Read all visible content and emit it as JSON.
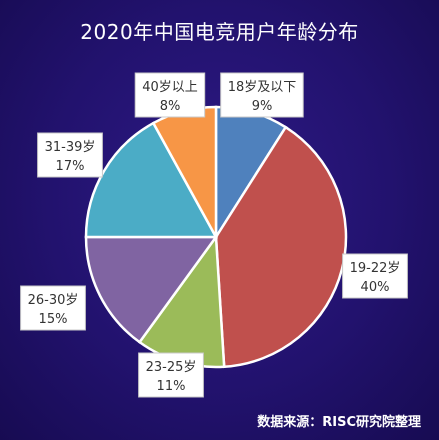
{
  "chart_data": {
    "type": "pie",
    "title": "2020年中国电竞用户年龄分布",
    "categories": [
      "18岁及以下",
      "19-22岁",
      "23-25岁",
      "26-30岁",
      "31-39岁",
      "40岁以上"
    ],
    "values": [
      9,
      40,
      11,
      15,
      17,
      8
    ],
    "value_labels": [
      "9%",
      "40%",
      "11%",
      "15%",
      "17%",
      "8%"
    ],
    "colors": [
      "#4f81bd",
      "#c0504d",
      "#9bbb59",
      "#8064a2",
      "#4bacc6",
      "#f79646"
    ],
    "source": "数据来源：RISC研究院整理"
  }
}
